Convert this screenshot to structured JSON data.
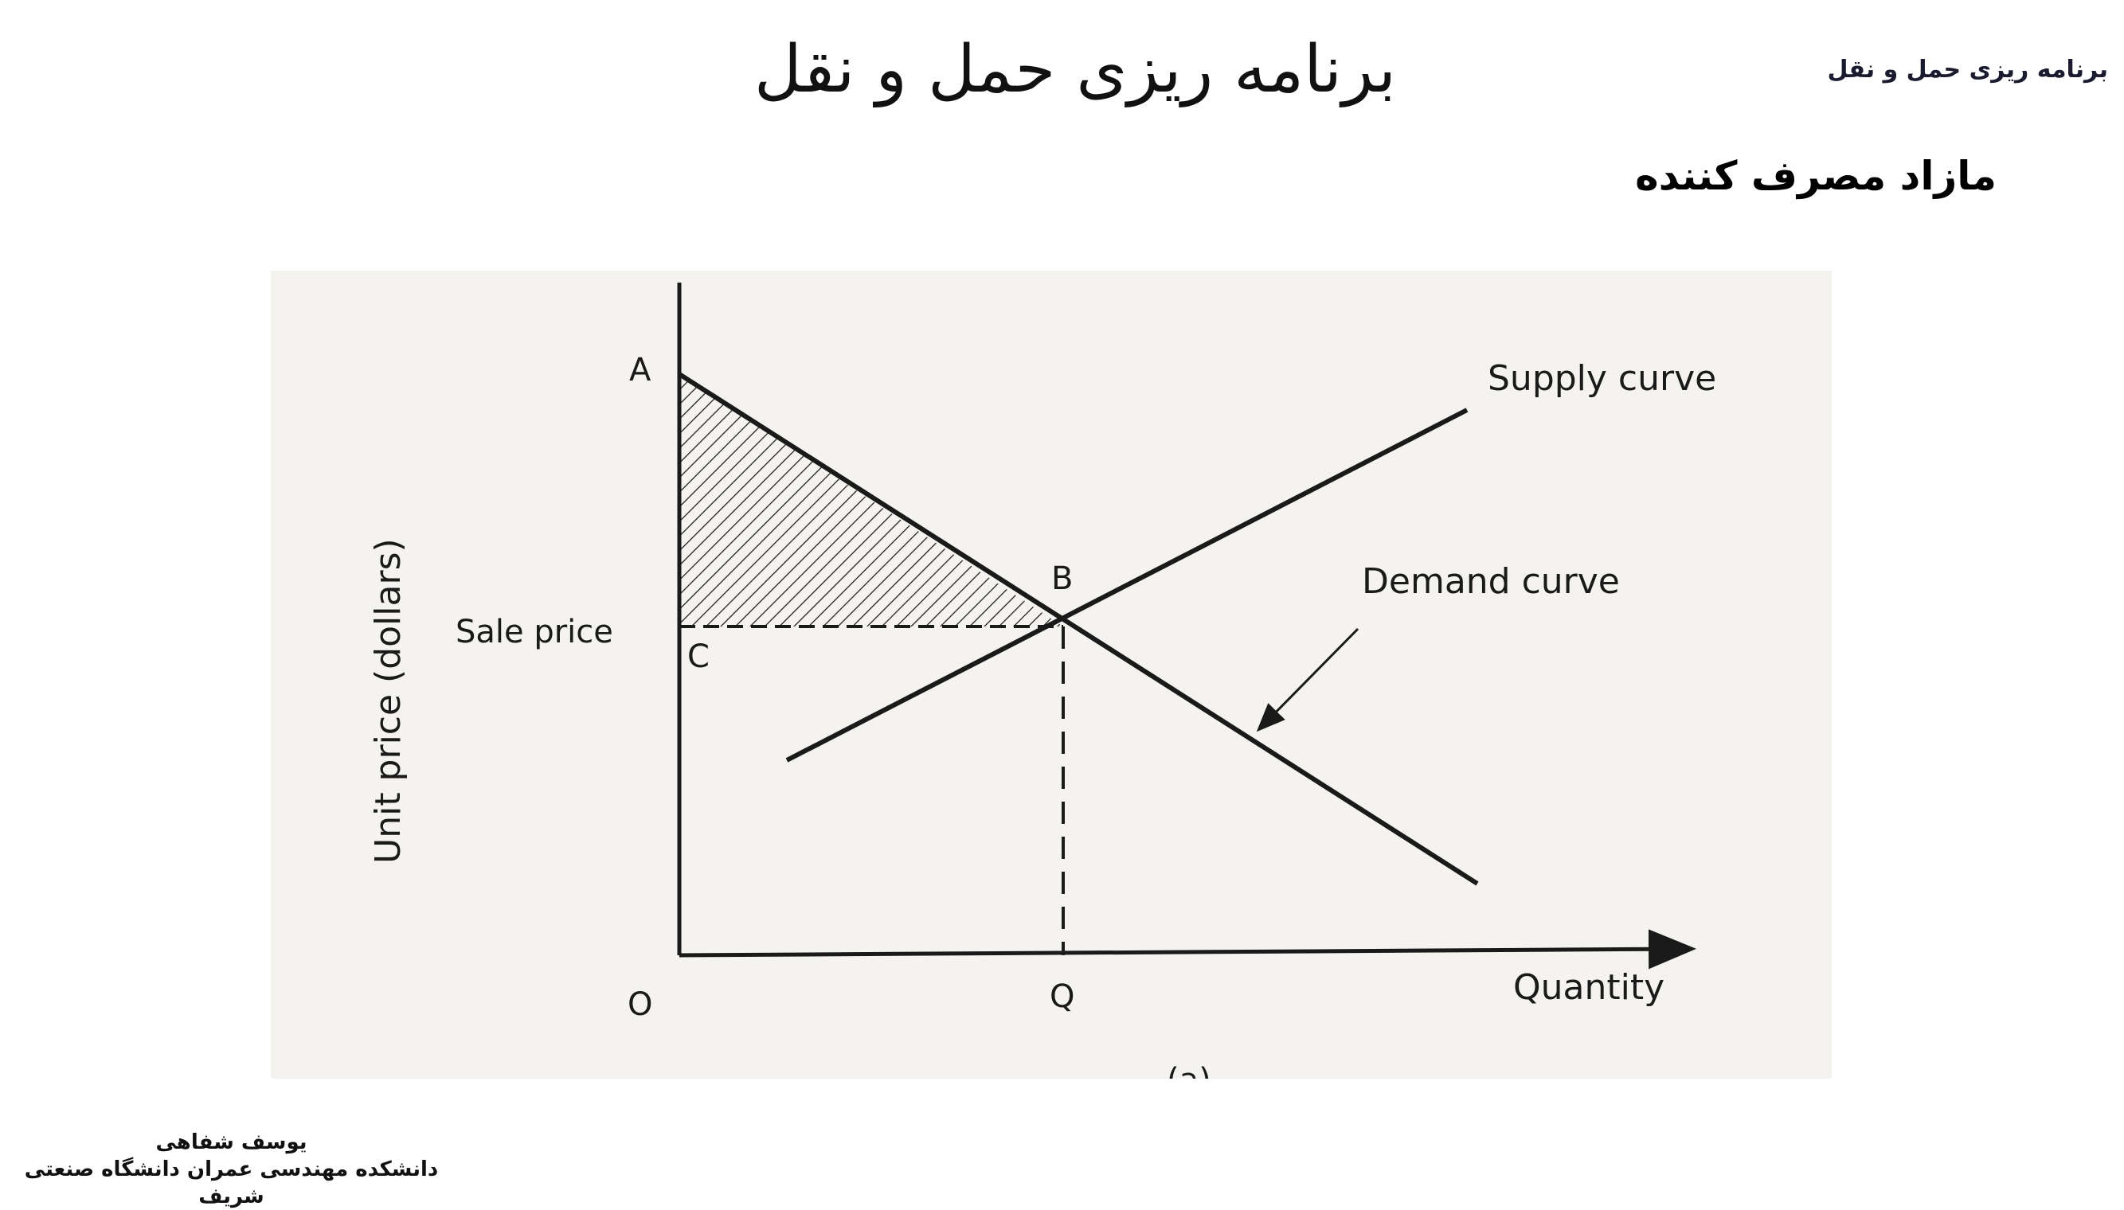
{
  "header": {
    "title": "برنامه ریزی حمل و نقل",
    "corner_tag": "برنامه ریزی حمل و نقل"
  },
  "section": {
    "title": "مازاد مصرف کننده"
  },
  "diagram": {
    "point_labels": {
      "a": "A",
      "b": "B",
      "c": "C",
      "origin": "O",
      "q": "Q"
    },
    "text": {
      "sale_price": "Sale price",
      "supply_curve": "Supply curve",
      "demand_curve": "Demand curve",
      "y_axis": "Unit price (dollars)",
      "x_axis": "Quantity",
      "caption_fragment": "(a)"
    },
    "colors": {
      "ink": "#1a1a1a",
      "paper": "#f5f3ef"
    }
  },
  "footer": {
    "author": "یوسف شفاهی",
    "affiliation": "دانشکده مهندسی عمران  دانشگاه صنعتی شریف"
  }
}
